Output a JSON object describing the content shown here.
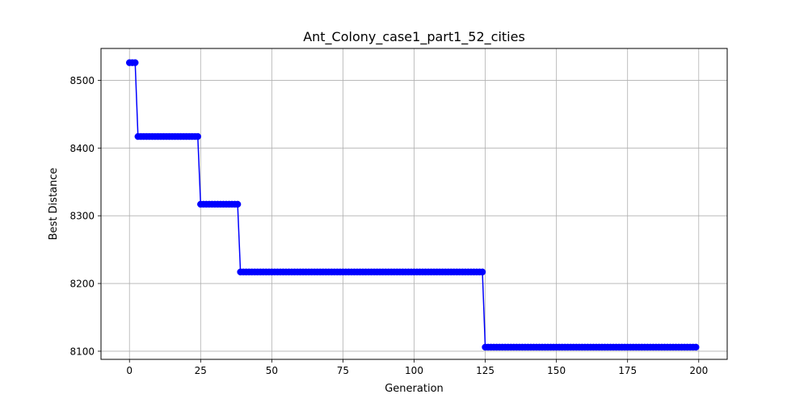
{
  "chart_data": {
    "type": "line",
    "title": "Ant_Colony_case1_part1_52_cities",
    "xlabel": "Generation",
    "ylabel": "Best Distance",
    "xlim": [
      -10,
      210
    ],
    "ylim": [
      8088,
      8547
    ],
    "xticks": [
      0,
      25,
      50,
      75,
      100,
      125,
      150,
      175,
      200
    ],
    "yticks": [
      8100,
      8200,
      8300,
      8400,
      8500
    ],
    "grid": true,
    "colors": {
      "line": "#0000ff",
      "grid": "#b0b0b0",
      "axes": "#000000"
    },
    "marker": "circle",
    "segments": [
      {
        "start": 0,
        "end": 2,
        "value": 8526
      },
      {
        "start": 3,
        "end": 24,
        "value": 8417
      },
      {
        "start": 25,
        "end": 38,
        "value": 8317
      },
      {
        "start": 39,
        "end": 124,
        "value": 8217
      },
      {
        "start": 125,
        "end": 199,
        "value": 8106
      }
    ]
  }
}
